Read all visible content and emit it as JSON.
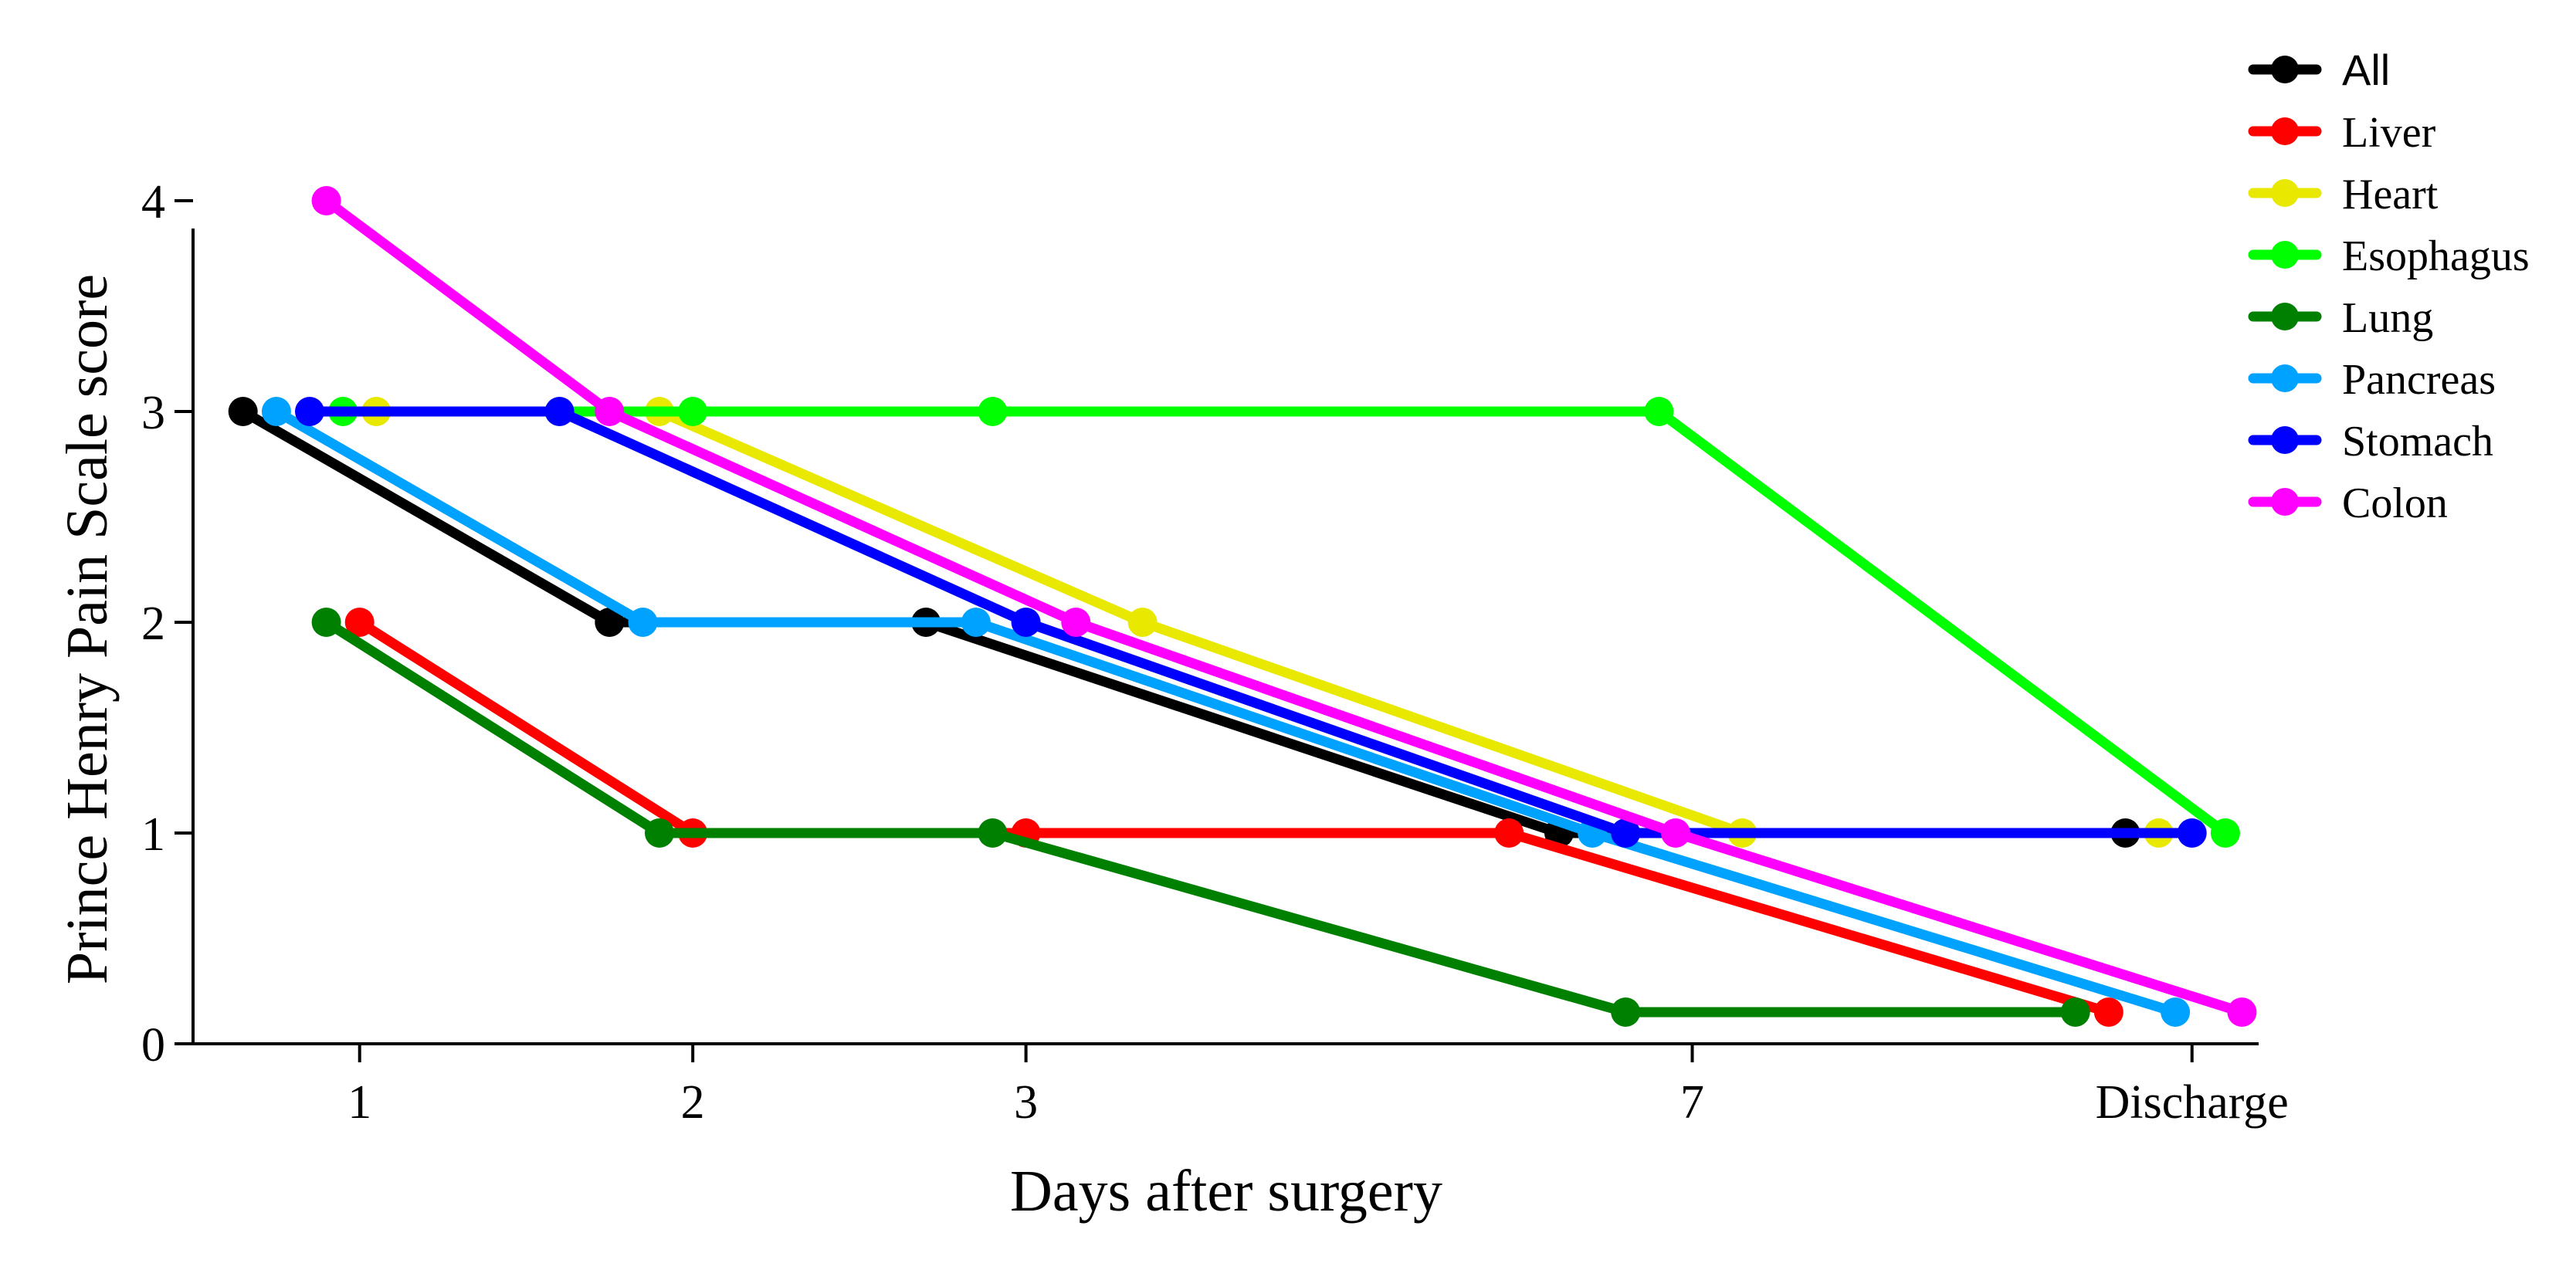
{
  "chart_data": {
    "type": "line",
    "title": "",
    "xlabel": "Days after surgery",
    "ylabel": "Prince Henry Pain  Scale score",
    "categories": [
      "1",
      "2",
      "3",
      "7",
      "Discharge"
    ],
    "ylim": [
      0,
      4
    ],
    "yticks": [
      "0",
      "1",
      "2",
      "3",
      "4"
    ],
    "grid": false,
    "legend_position": "top-right",
    "series": [
      {
        "name": "All",
        "color": "#000000",
        "points": [
          [
            0.65,
            3
          ],
          [
            1.75,
            2
          ],
          [
            2.7,
            2
          ],
          [
            4.6,
            1
          ],
          [
            6.3,
            1
          ]
        ]
      },
      {
        "name": "Liver",
        "color": "#ff0000",
        "points": [
          [
            1.0,
            2
          ],
          [
            2.0,
            1
          ],
          [
            3.0,
            1
          ],
          [
            4.45,
            1
          ],
          [
            6.25,
            0.15
          ]
        ]
      },
      {
        "name": "Heart",
        "color": "#e8e800",
        "points": [
          [
            1.05,
            3
          ],
          [
            1.9,
            3
          ],
          [
            3.35,
            2
          ],
          [
            5.15,
            1
          ],
          [
            6.4,
            1
          ]
        ]
      },
      {
        "name": "Esophagus",
        "color": "#00ff00",
        "points": [
          [
            0.95,
            3
          ],
          [
            2.0,
            3
          ],
          [
            2.9,
            3
          ],
          [
            4.9,
            3
          ],
          [
            6.6,
            1
          ]
        ]
      },
      {
        "name": "Lung",
        "color": "#008000",
        "points": [
          [
            0.9,
            2
          ],
          [
            1.9,
            1
          ],
          [
            2.9,
            1
          ],
          [
            4.8,
            0.15
          ],
          [
            6.15,
            0.15
          ]
        ]
      },
      {
        "name": "Pancreas",
        "color": "#00a2ff",
        "points": [
          [
            0.75,
            3
          ],
          [
            1.85,
            2
          ],
          [
            2.85,
            2
          ],
          [
            4.7,
            1
          ],
          [
            6.45,
            0.15
          ]
        ]
      },
      {
        "name": "Stomach",
        "color": "#0000ff",
        "points": [
          [
            0.85,
            3
          ],
          [
            1.6,
            3
          ],
          [
            3.0,
            2
          ],
          [
            4.8,
            1
          ],
          [
            6.5,
            1
          ]
        ]
      },
      {
        "name": "Colon",
        "color": "#ff00ff",
        "points": [
          [
            0.9,
            4
          ],
          [
            1.75,
            3
          ],
          [
            3.15,
            2
          ],
          [
            4.95,
            1
          ],
          [
            6.65,
            0.15
          ]
        ]
      }
    ],
    "x_tick_positions": [
      1,
      2,
      3,
      5,
      6.5
    ],
    "x_range": [
      0.5,
      6.7
    ]
  }
}
